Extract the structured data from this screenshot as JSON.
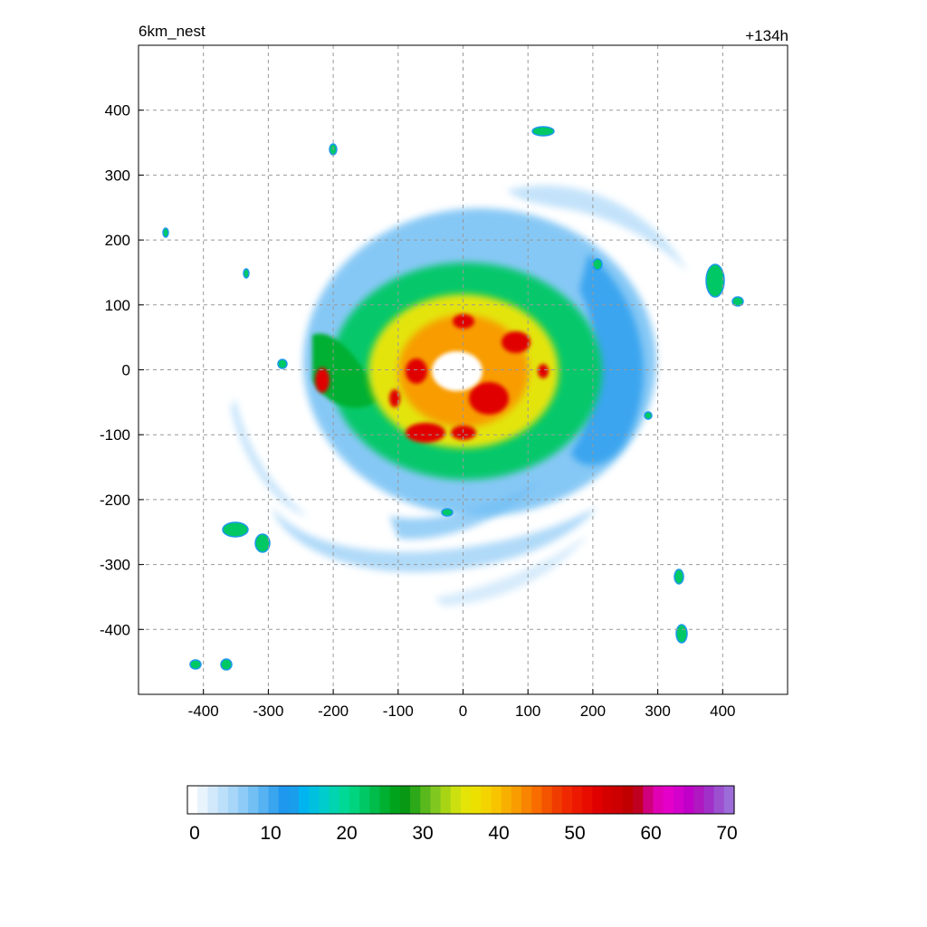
{
  "chart_data": {
    "type": "heatmap",
    "title_left": "6km_nest",
    "title_right": "+134h",
    "xlabel": "",
    "ylabel": "",
    "xlim": [
      -500,
      500
    ],
    "ylim": [
      -500,
      500
    ],
    "xticks": [
      -400,
      -300,
      -200,
      -100,
      0,
      100,
      200,
      300,
      400
    ],
    "yticks": [
      400,
      300,
      200,
      100,
      0,
      -100,
      -200,
      -300,
      -400
    ],
    "grid": true,
    "colorbar": {
      "min": 0,
      "max": 70,
      "tick_labels": [
        "0",
        "10",
        "20",
        "30",
        "40",
        "50",
        "60",
        "70"
      ],
      "colors": [
        "#ffffff",
        "#e8f3fc",
        "#d2e9fb",
        "#bde0fa",
        "#a7d6f8",
        "#8ecbf6",
        "#72bff4",
        "#56b2f1",
        "#3aa5ef",
        "#1e98ee",
        "#1a9eec",
        "#00b4f0",
        "#00c0e0",
        "#00cccc",
        "#00d4b0",
        "#00d896",
        "#00d47e",
        "#00c864",
        "#00bc4a",
        "#00b030",
        "#00a41c",
        "#089814",
        "#2ca818",
        "#58b81c",
        "#80c820",
        "#a8d414",
        "#cce010",
        "#e4e408",
        "#ece000",
        "#f4d400",
        "#f8c400",
        "#f8b000",
        "#f89c00",
        "#f88400",
        "#f86c00",
        "#f45400",
        "#f03c00",
        "#f02800",
        "#ec1800",
        "#e80c00",
        "#e00000",
        "#d40000",
        "#cc0000",
        "#c00000",
        "#c00020",
        "#d0007c",
        "#e000b4",
        "#e400c8",
        "#d400cc",
        "#c000c8",
        "#b018c0",
        "#a030c8",
        "#9c50d0",
        "#9c6cd8"
      ]
    },
    "field": {
      "description_units": "reflectivity-like contour bands",
      "storm_center": [
        0,
        0
      ],
      "eye_radius_km": 30
    }
  }
}
